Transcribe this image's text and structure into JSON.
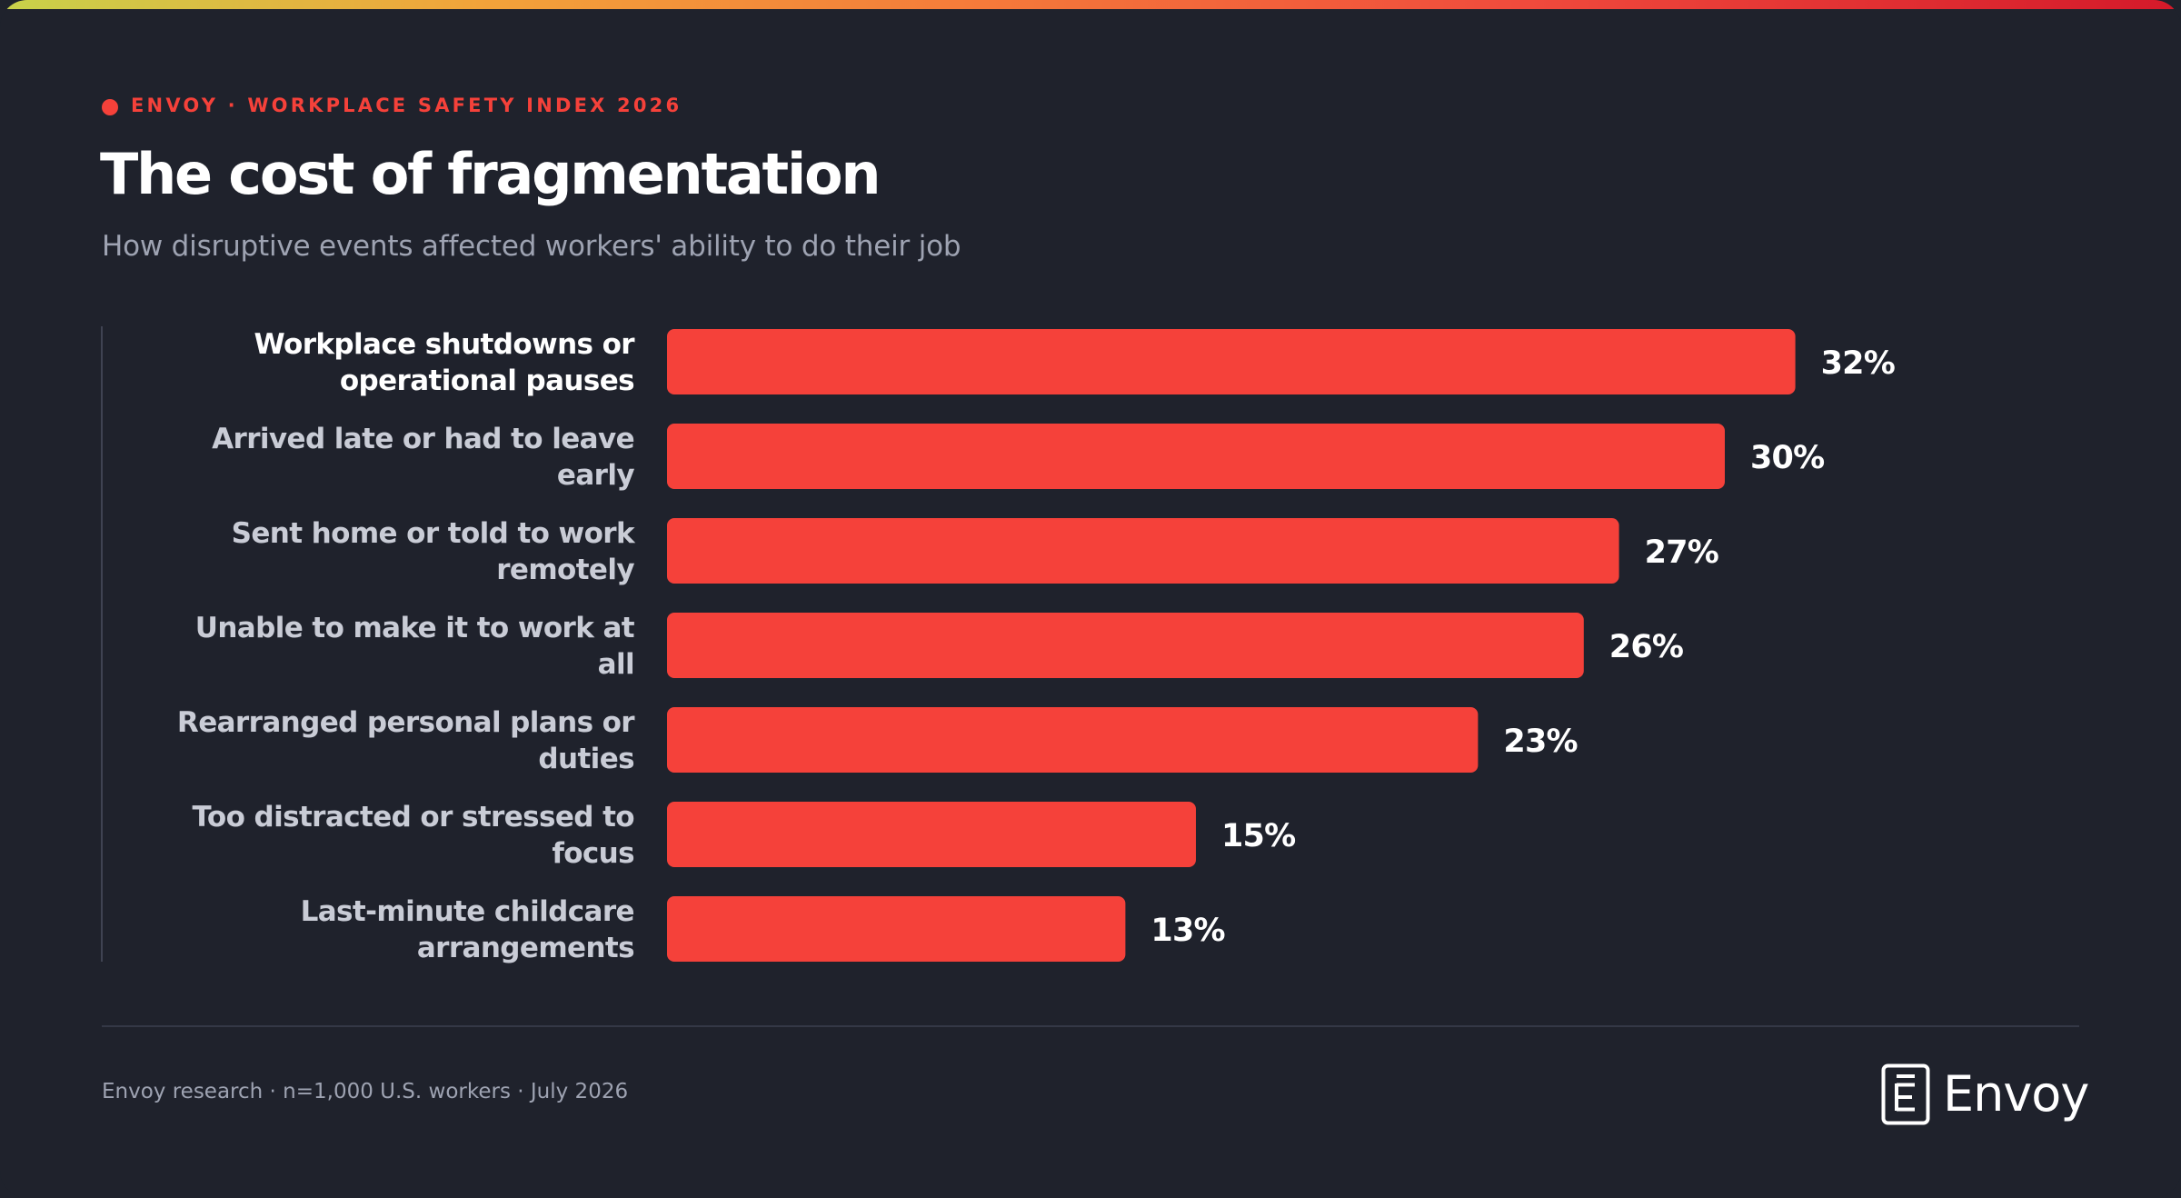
{
  "header": {
    "eyebrow": "ENVOY · WORKPLACE SAFETY INDEX 2026",
    "title": "The cost of fragmentation",
    "subtitle": "How disruptive events affected workers' ability to do their job"
  },
  "chart_data": {
    "type": "bar",
    "orientation": "horizontal",
    "title": "The cost of fragmentation",
    "subtitle": "How disruptive events affected workers' ability to do their job",
    "categories": [
      "Workplace shutdowns or operational pauses",
      "Arrived late or had to leave early",
      "Sent home or told to work remotely",
      "Unable to make it to work at all",
      "Rearranged personal plans or duties",
      "Too distracted or stressed to focus",
      "Last-minute childcare arrangements"
    ],
    "values": [
      32,
      30,
      27,
      26,
      23,
      15,
      13
    ],
    "value_labels": [
      "32%",
      "30%",
      "27%",
      "26%",
      "23%",
      "15%",
      "13%"
    ],
    "unit": "%",
    "xlabel": "",
    "ylabel": "",
    "grid": false,
    "legend": "none",
    "bar_color": "#f5413a",
    "highlight_first_label": true
  },
  "footer": {
    "note": "Envoy research · n=1,000 U.S. workers · July 2026",
    "logo_text": "Envoy",
    "logo_icon": "envoy-e-logo-icon"
  },
  "colors": {
    "background": "#1f222c",
    "accent": "#f5413a",
    "text_primary": "#ffffff",
    "text_secondary": "#c9ccd6",
    "text_muted": "#9ea3b2"
  }
}
